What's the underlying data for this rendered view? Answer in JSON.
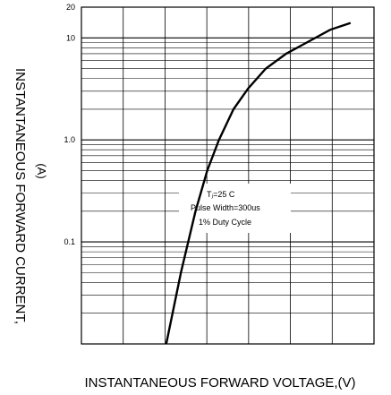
{
  "chart_data": {
    "type": "line",
    "title": "",
    "xlabel": "INSTANTANEOUS FORWARD VOLTAGE,(V)",
    "ylabel": "INSTANTANEOUS FORWARD CURRENT,",
    "ylabel_unit": "(A)",
    "y_scale": "log",
    "ylim": [
      0.01,
      20
    ],
    "y_tick_labels": [
      "20",
      "10",
      "1.0",
      "0.1"
    ],
    "x_tick_labels": [],
    "grid": true,
    "legend": "none",
    "annotation": [
      "Tⱼ=25    C",
      "Pulse Width=300us",
      "1% Duty Cycle"
    ],
    "series": [
      {
        "x": [
          0.29,
          0.34,
          0.39,
          0.43,
          0.47,
          0.52,
          0.57,
          0.63,
          0.7,
          0.77,
          0.85,
          0.92
        ],
        "values": [
          0.01,
          0.05,
          0.2,
          0.5,
          1.0,
          2.0,
          3.2,
          5.0,
          7.0,
          9.0,
          12.0,
          14.0
        ]
      }
    ],
    "colors": {
      "curve": "#000000",
      "grid": "#000000",
      "background": "#ffffff"
    }
  }
}
